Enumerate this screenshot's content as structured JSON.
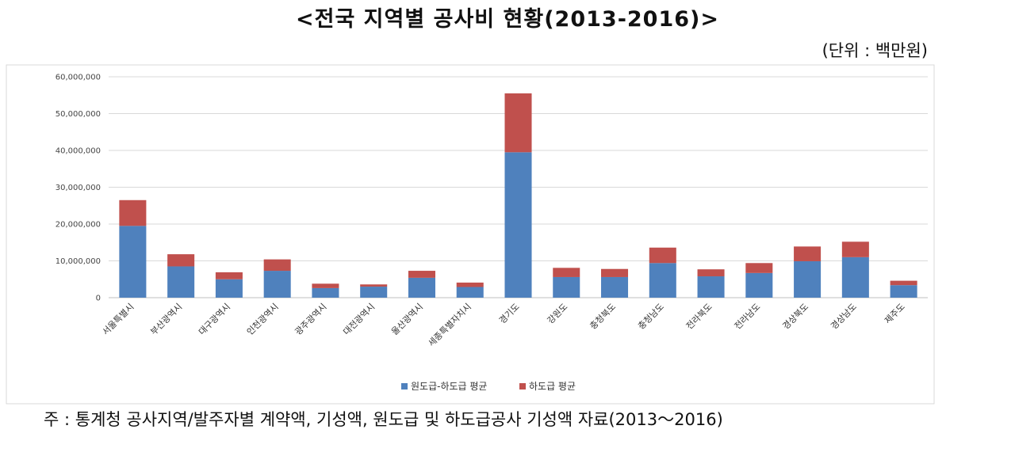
{
  "page": {
    "title": "<전국 지역별 공사비 현황(2013-2016)>",
    "unit": "(단위 : 백만원)",
    "note": "주 : 통계청 공사지역/발주자별 계약액, 기성액, 원도급 및 하도급공사 기성액 자료(2013～2016)"
  },
  "chart_data": {
    "type": "bar",
    "stacked": true,
    "categories": [
      "서울특별시",
      "부산광역시",
      "대구광역시",
      "인천광역시",
      "광주광역시",
      "대전광역시",
      "울산광역시",
      "세종특별자치시",
      "경기도",
      "강원도",
      "충청북도",
      "충청남도",
      "전라북도",
      "전라남도",
      "경상북도",
      "경상남도",
      "제주도"
    ],
    "series": [
      {
        "name": "원도급-하도급 평균",
        "color": "#4f81bd",
        "values": [
          19500000,
          8500000,
          5000000,
          7300000,
          2600000,
          3000000,
          5400000,
          2900000,
          39500000,
          5600000,
          5600000,
          9400000,
          5800000,
          6700000,
          9900000,
          11000000,
          3400000
        ]
      },
      {
        "name": "하도급 평균",
        "color": "#c0504d",
        "values": [
          7000000,
          3300000,
          1900000,
          3100000,
          1200000,
          600000,
          1900000,
          1200000,
          16000000,
          2500000,
          2200000,
          4200000,
          1900000,
          2700000,
          4000000,
          4200000,
          1200000
        ]
      }
    ],
    "ylim": [
      0,
      60000000
    ],
    "yticks": [
      "0",
      "10,000,000",
      "20,000,000",
      "30,000,000",
      "40,000,000",
      "50,000,000",
      "60,000,000"
    ],
    "ytick_values": [
      0,
      10000000,
      20000000,
      30000000,
      40000000,
      50000000,
      60000000
    ],
    "grid": true,
    "legend_position": "bottom"
  }
}
